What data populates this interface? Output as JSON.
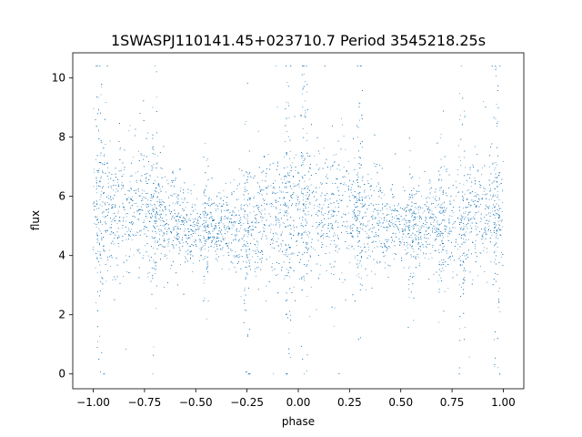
{
  "chart_data": {
    "type": "scatter",
    "title": "1SWASPJ110141.45+023710.7 Period 3545218.25s",
    "xlabel": "phase",
    "ylabel": "flux",
    "xlim": [
      -1.1,
      1.1
    ],
    "ylim": [
      -0.5,
      10.85
    ],
    "xticks": [
      -1.0,
      -0.75,
      -0.5,
      -0.25,
      0.0,
      0.25,
      0.5,
      0.75,
      1.0
    ],
    "xtick_labels": [
      "−1.00",
      "−0.75",
      "−0.50",
      "−0.25",
      "0.00",
      "0.25",
      "0.50",
      "0.75",
      "1.00"
    ],
    "yticks": [
      0,
      2,
      4,
      6,
      8,
      10
    ],
    "ytick_labels": [
      "0",
      "2",
      "4",
      "6",
      "8",
      "10"
    ],
    "grid": false,
    "marker_color": "#1f77b4",
    "series": [
      {
        "x_range": [
          -1.0,
          1.0
        ],
        "envelope": [
          {
            "phase": -1.0,
            "flux_median": 5.6,
            "flux_low": 3.7,
            "flux_high": 7.0
          },
          {
            "phase": -0.75,
            "flux_median": 5.5,
            "flux_low": 3.9,
            "flux_high": 6.9
          },
          {
            "phase": -0.5,
            "flux_median": 4.9,
            "flux_low": 4.2,
            "flux_high": 5.6
          },
          {
            "phase": -0.25,
            "flux_median": 5.0,
            "flux_low": 3.8,
            "flux_high": 6.0
          },
          {
            "phase": 0.0,
            "flux_median": 5.6,
            "flux_low": 3.7,
            "flux_high": 7.0
          },
          {
            "phase": 0.25,
            "flux_median": 5.5,
            "flux_low": 3.9,
            "flux_high": 6.9
          },
          {
            "phase": 0.5,
            "flux_median": 4.9,
            "flux_low": 4.2,
            "flux_high": 5.6
          },
          {
            "phase": 0.75,
            "flux_median": 5.0,
            "flux_low": 3.8,
            "flux_high": 6.0
          },
          {
            "phase": 1.0,
            "flux_median": 5.6,
            "flux_low": 3.7,
            "flux_high": 7.0
          }
        ],
        "high_scatter_phases": [
          -0.97,
          -0.7,
          -0.45,
          -0.25,
          -0.05,
          0.03,
          0.3,
          0.55,
          0.7,
          0.8,
          0.97
        ],
        "flux_max": 10.4,
        "flux_min": 0.0,
        "n_points": 9000
      }
    ]
  }
}
